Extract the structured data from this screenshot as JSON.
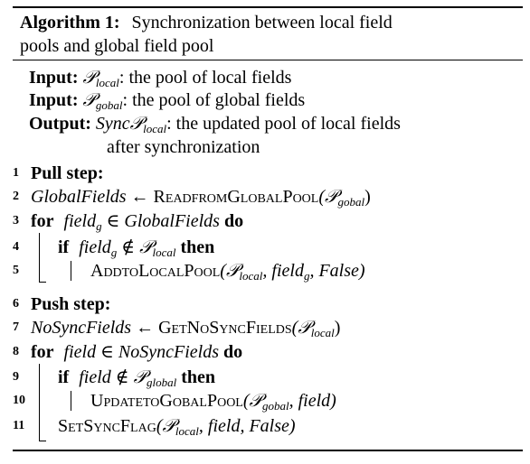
{
  "algorithm": {
    "label": "Algorithm 1:",
    "title_line1": "Synchronization between local field",
    "title_line2": "pools and global field pool",
    "io": [
      {
        "kw": "Input:",
        "sym": "𝒫",
        "sub": "local",
        "text": ": the pool of local fields"
      },
      {
        "kw": "Input:",
        "sym": "𝒫",
        "sub": "gobal",
        "text": ": the pool of global fields"
      },
      {
        "kw": "Output:",
        "sym": "Sync𝒫",
        "sub": "local",
        "text": ": the updated pool of local fields"
      }
    ],
    "io_continuation": "after synchronization",
    "line_numbers": [
      "1",
      "2",
      "3",
      "4",
      "5",
      "6",
      "7",
      "8",
      "9",
      "10",
      "11"
    ],
    "lines": {
      "l1": "Pull step:",
      "l2_var": "GlobalFields",
      "l2_arrow": "←",
      "l2_fn": "ReadfromGlobalPool",
      "l2_args": "(𝒫",
      "l2_sub": "gobal",
      "l2_close": ")",
      "l3_for": "for",
      "l3_var": "field",
      "l3_sub": "g",
      "l3_in": "∈",
      "l3_set": "GlobalFields",
      "l3_do": "do",
      "l4_if": "if",
      "l4_var": "field",
      "l4_sub": "g",
      "l4_notin": "∉",
      "l4_set": "𝒫",
      "l4_setsub": "local",
      "l4_then": "then",
      "l5_fn": "AddtoLocalPool",
      "l5_open": "(𝒫",
      "l5_sub1": "local",
      "l5_mid": ", field",
      "l5_sub2": "g",
      "l5_end": ", False)",
      "l6": "Push step:",
      "l7_var": "NoSyncFields",
      "l7_arrow": "←",
      "l7_fn": "GetNoSyncFields",
      "l7_open": "(𝒫",
      "l7_sub": "local",
      "l7_close": ")",
      "l8_for": "for",
      "l8_var": "field",
      "l8_in": "∈",
      "l8_set": "NoSyncFields",
      "l8_do": "do",
      "l9_if": "if",
      "l9_var": "field",
      "l9_notin": "∉",
      "l9_set": "𝒫",
      "l9_setsub": "global",
      "l9_then": "then",
      "l10_fn": "UpdatetoGobalPool",
      "l10_open": "(𝒫",
      "l10_sub": "gobal",
      "l10_end": ", field)",
      "l11_fn": "SetSyncFlag",
      "l11_open": "(𝒫",
      "l11_sub": "local",
      "l11_end": ", field, False)"
    }
  }
}
